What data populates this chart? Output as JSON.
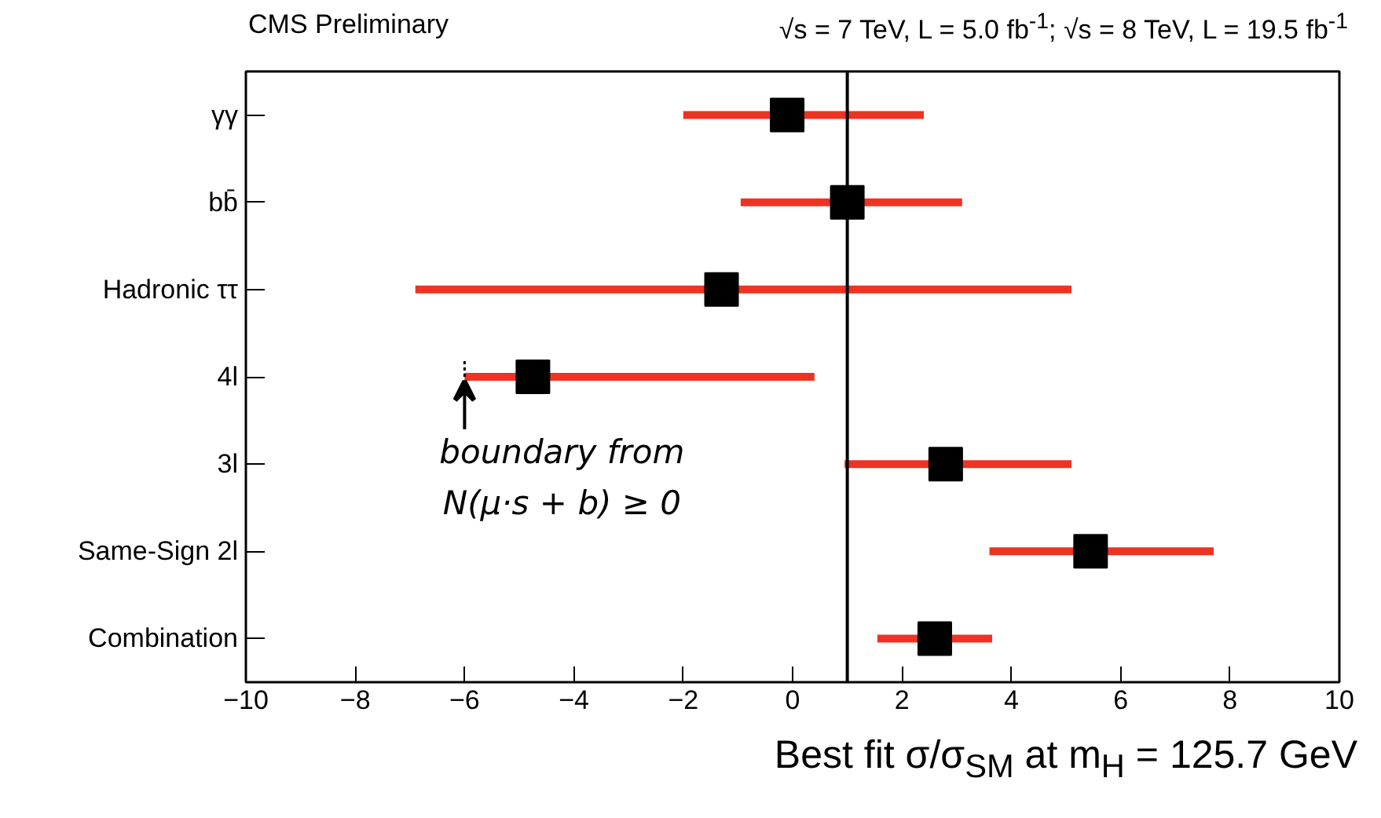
{
  "chart_data": {
    "type": "scatter",
    "orientation": "horizontal",
    "title": "CMS Preliminary",
    "subtitle": "√s = 7 TeV, L = 5.0 fb$^{-1}$; √s = 8 TeV, L = 19.5 fb$^{-1}$",
    "xlabel": "Best fit σ/σ$_{SM}$ at m$_{H}$ = 125.7 GeV",
    "categories": [
      "γγ",
      "bb̄",
      "Hadronic ττ",
      "4l",
      "3l",
      "Same-Sign 2l",
      "Combination"
    ],
    "series": [
      {
        "color": "#000000",
        "values": [
          -0.1,
          1.0,
          -1.3,
          -4.75,
          2.8,
          5.45,
          2.6
        ],
        "errors": [
          [
            -2.0,
            2.4
          ],
          [
            -0.95,
            3.1
          ],
          [
            -6.9,
            5.1
          ],
          [
            -6.0,
            0.4
          ],
          [
            0.95,
            5.1
          ],
          [
            3.6,
            7.7
          ],
          [
            1.55,
            3.65
          ]
        ]
      }
    ],
    "marker": "square",
    "xlim": [
      -10,
      10
    ],
    "xticks": [
      -10,
      -8,
      -6,
      -4,
      -2,
      0,
      2,
      4,
      6,
      8,
      10
    ],
    "ref_lines": [
      {
        "axis": "x",
        "value": 1,
        "color": "#000000"
      }
    ],
    "annotations": [
      {
        "text": "boundary from\nN(μ·s + b) ≥ 0",
        "x": -6,
        "y": "4l"
      }
    ],
    "grid": false
  }
}
